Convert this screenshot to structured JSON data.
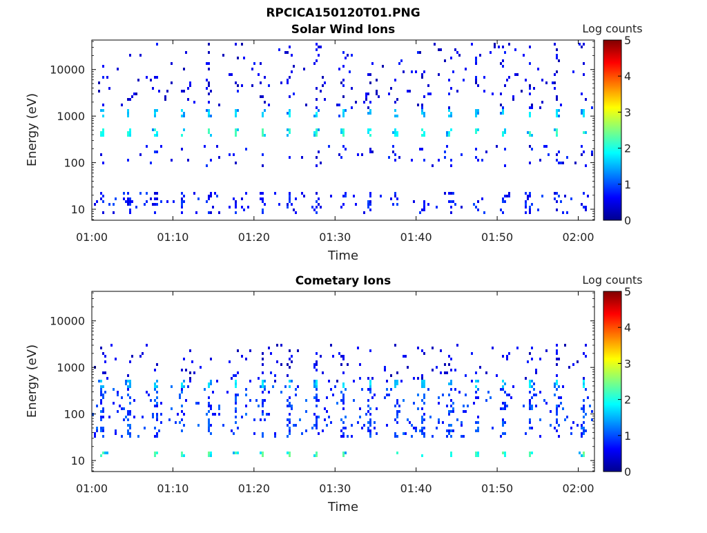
{
  "figure_title": "RPCICA150120T01.PNG",
  "colormap": "jet",
  "chart_data": [
    {
      "type": "heatmap",
      "title": "Solar Wind Ions",
      "xlabel": "Time",
      "ylabel": "Energy (eV)",
      "y_scale": "log",
      "ylim": [
        5.8,
        43000
      ],
      "y_ticks": [
        10,
        100,
        1000,
        10000
      ],
      "y_tick_labels": [
        "10",
        "100",
        "1000",
        "10000"
      ],
      "x_range": [
        "01:00",
        "02:02"
      ],
      "x_tick_labels": [
        "01:00",
        "01:10",
        "01:20",
        "01:30",
        "01:40",
        "01:50",
        "02:00"
      ],
      "colorbar": {
        "label": "Log counts",
        "range": [
          0,
          5
        ],
        "tick_labels": [
          "0",
          "1",
          "2",
          "3",
          "4",
          "5"
        ]
      },
      "cycle_minutes": 3.3,
      "features": [
        {
          "energy_eV": 450,
          "log_counts": 2.0,
          "description": "periodic bright band"
        },
        {
          "energy_eV": 1150,
          "log_counts": 1.6,
          "description": "periodic band"
        },
        {
          "energy_eV": [
            8,
            25
          ],
          "log_counts": 0.4,
          "description": "low energy vertical streaks"
        },
        {
          "energy_eV": [
            80,
            250
          ],
          "log_counts": 0.3,
          "description": "scattered counts"
        },
        {
          "energy_eV": [
            1500,
            40000
          ],
          "log_counts": 0.2,
          "description": "sparse high energy dots"
        }
      ]
    },
    {
      "type": "heatmap",
      "title": "Cometary Ions",
      "xlabel": "Time",
      "ylabel": "Energy (eV)",
      "y_scale": "log",
      "ylim": [
        5.8,
        43000
      ],
      "y_ticks": [
        10,
        100,
        1000,
        10000
      ],
      "y_tick_labels": [
        "10",
        "100",
        "1000",
        "10000"
      ],
      "x_range": [
        "01:00",
        "02:02"
      ],
      "x_tick_labels": [
        "01:00",
        "01:10",
        "01:20",
        "01:30",
        "01:40",
        "01:50",
        "02:00"
      ],
      "colorbar": {
        "label": "Log counts",
        "range": [
          0,
          5
        ],
        "tick_labels": [
          "0",
          "1",
          "2",
          "3",
          "4",
          "5"
        ]
      },
      "cycle_minutes": 3.3,
      "features": [
        {
          "energy_eV": 14,
          "log_counts": 2.2,
          "description": "periodic low energy streaks"
        },
        {
          "energy_eV": 450,
          "log_counts": 1.6,
          "description": "periodic band"
        },
        {
          "energy_eV": [
            30,
            400
          ],
          "log_counts": 0.6,
          "description": "dense scattered counts"
        },
        {
          "energy_eV": [
            500,
            3000
          ],
          "log_counts": 0.2,
          "description": "sparse dots"
        }
      ]
    }
  ]
}
